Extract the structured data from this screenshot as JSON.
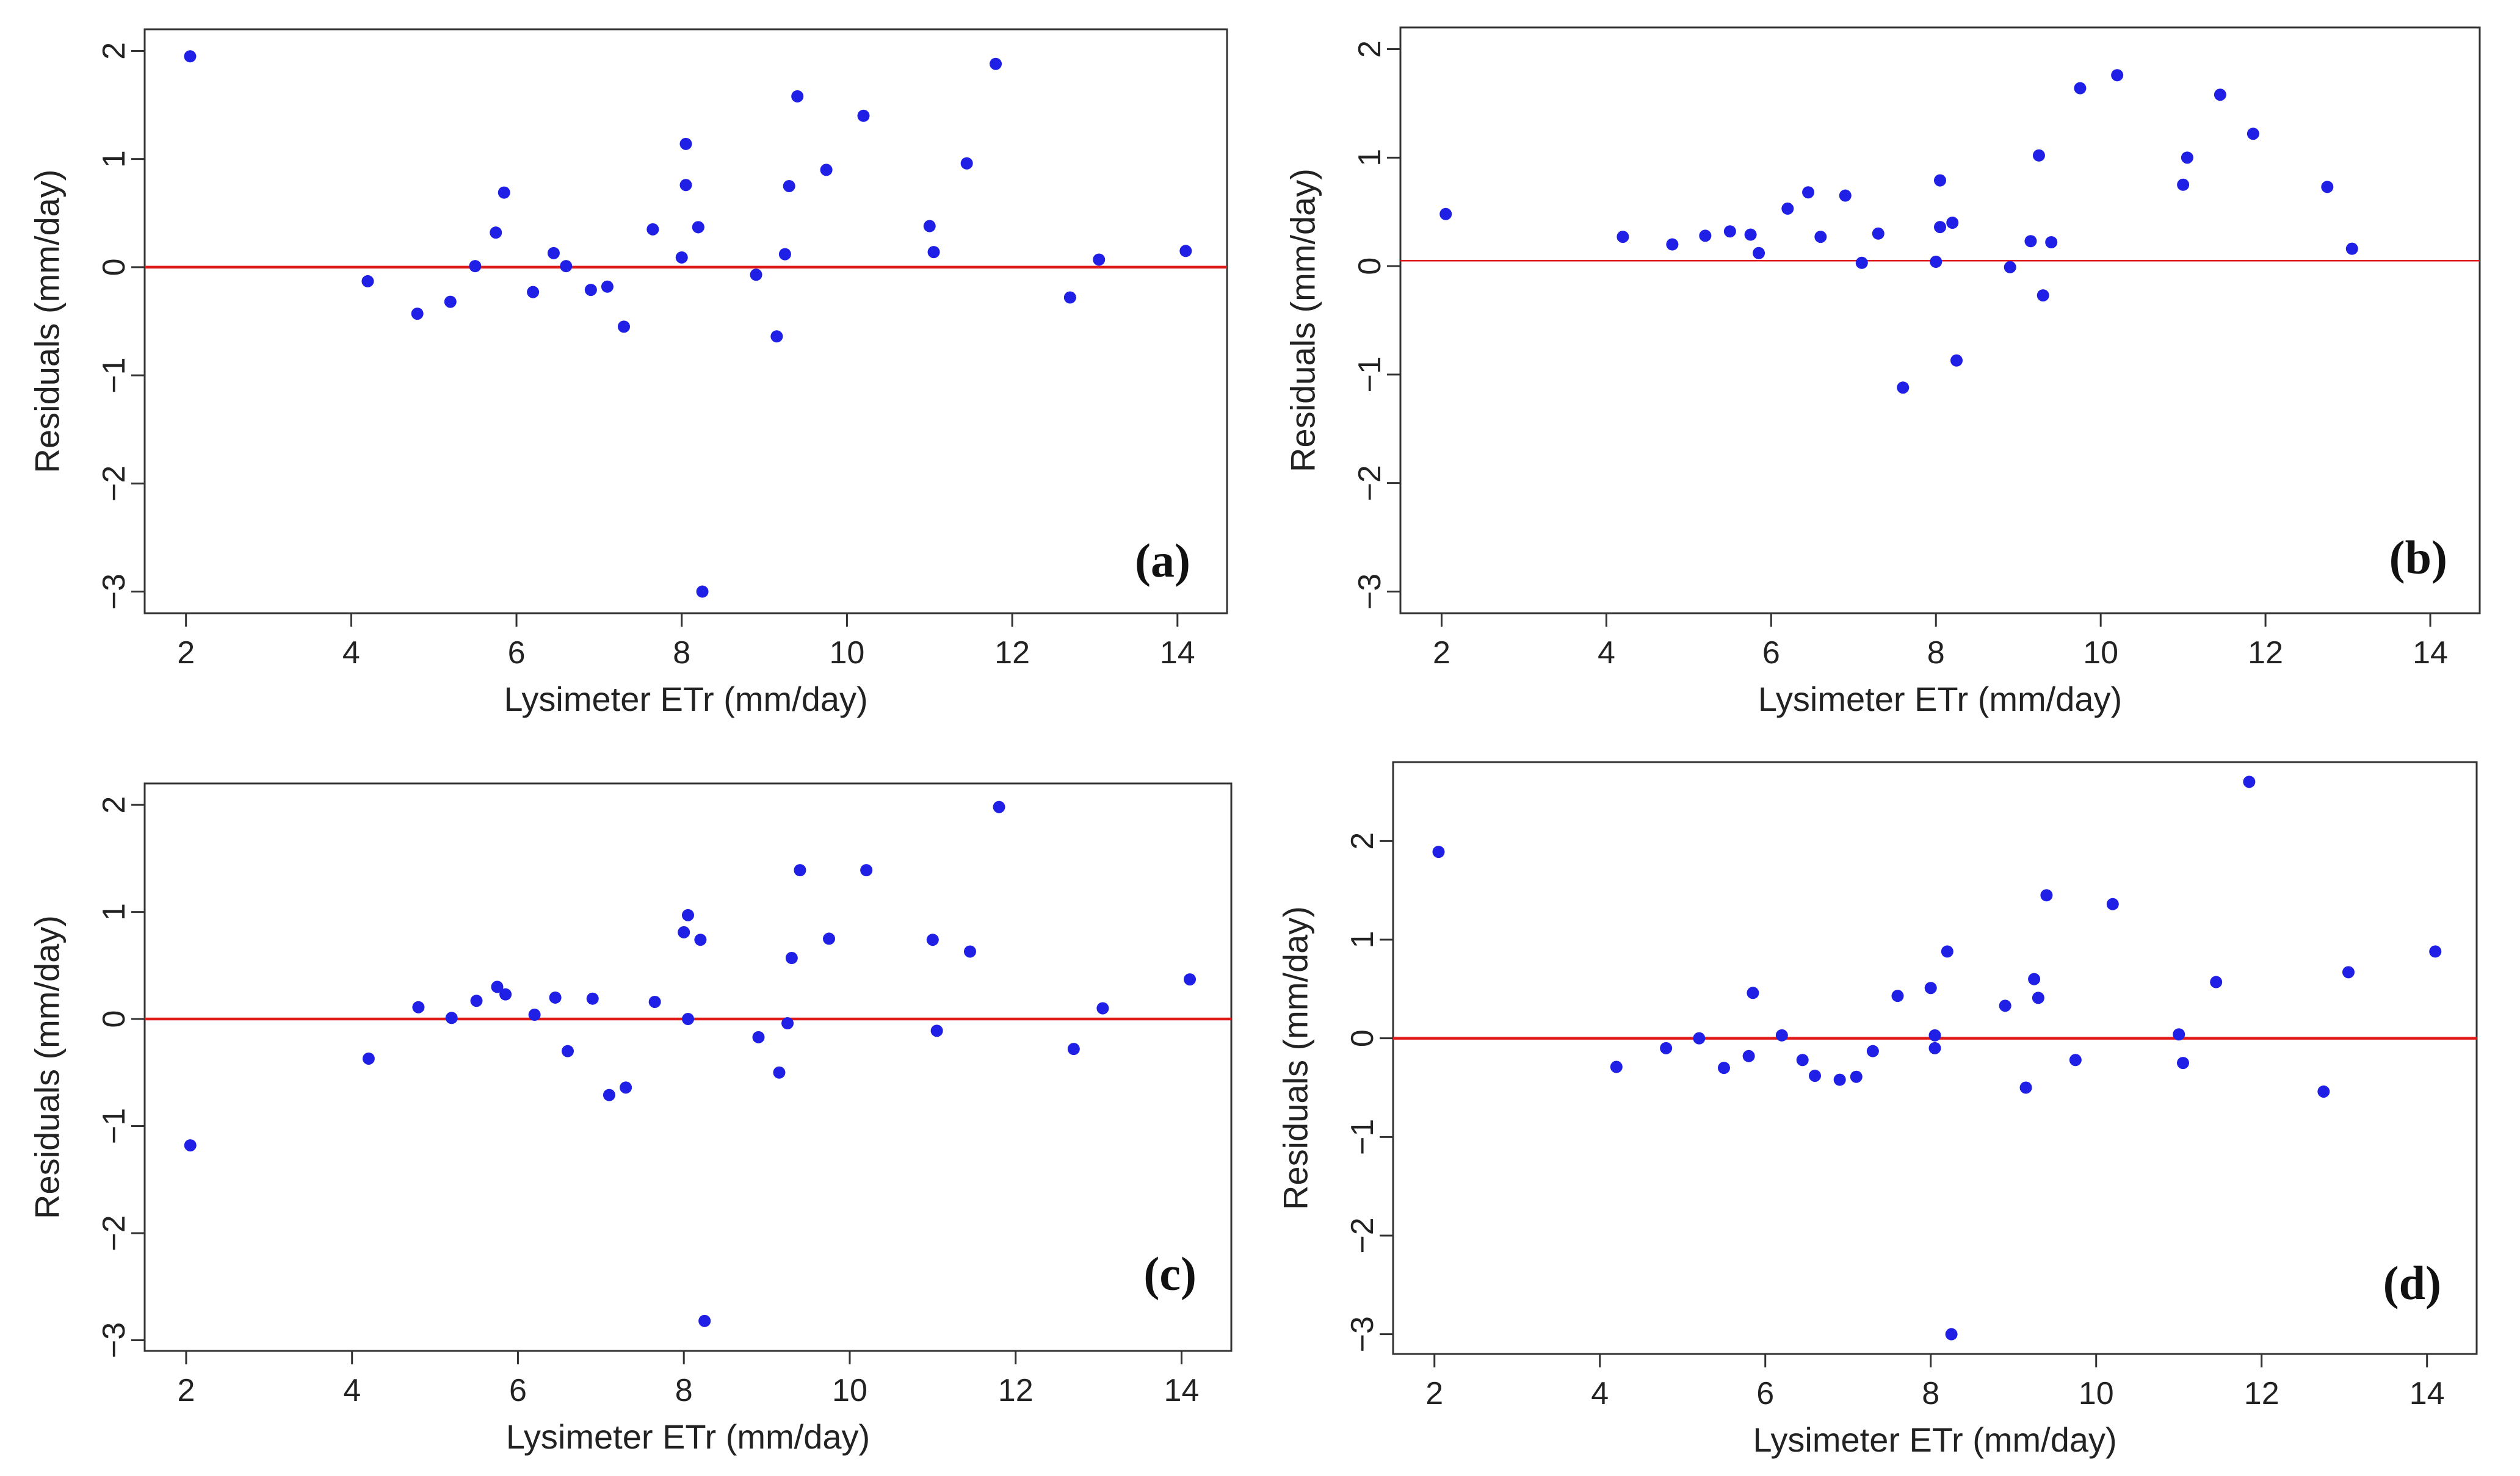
{
  "colors": {
    "points": "#1f1fe6",
    "zero_line": "#e01919",
    "frame": "#333333",
    "text": "#222222"
  },
  "chart_data": [
    {
      "panel": "(a)",
      "type": "scatter",
      "xlabel": "Lysimeter ETr (mm/day)",
      "ylabel": "Residuals (mm/day)",
      "xlim": [
        1.5,
        14.6
      ],
      "ylim": [
        -3.2,
        2.2
      ],
      "xticks": [
        2,
        4,
        6,
        8,
        10,
        12,
        14
      ],
      "yticks": [
        -3,
        -2,
        -1,
        0,
        1,
        2
      ],
      "ytick_labels": [
        "−3",
        "−2",
        "−1",
        "0",
        "1",
        "2"
      ],
      "reference_line": 0,
      "x": [
        2.05,
        4.2,
        4.8,
        5.2,
        5.5,
        5.75,
        5.85,
        6.2,
        6.45,
        6.6,
        6.9,
        7.1,
        7.3,
        7.65,
        8.0,
        8.05,
        8.05,
        8.2,
        8.25,
        8.2,
        8.9,
        9.15,
        9.25,
        9.3,
        9.4,
        9.75,
        10.2,
        11.0,
        11.05,
        11.45,
        11.8,
        12.7,
        13.05,
        14.1
      ],
      "y": [
        1.95,
        -0.13,
        -0.43,
        -0.32,
        0.01,
        0.32,
        0.69,
        -0.23,
        0.13,
        0.01,
        -0.21,
        -0.18,
        -0.55,
        0.35,
        0.09,
        0.76,
        1.14,
        0.37,
        -3.0,
        0.37,
        -0.07,
        -0.64,
        0.12,
        0.75,
        1.58,
        0.9,
        1.4,
        0.38,
        0.14,
        0.96,
        1.88,
        -0.28,
        0.07,
        0.15
      ]
    },
    {
      "panel": "(b)",
      "type": "scatter",
      "xlabel": "Lysimeter ETr (mm/day)",
      "ylabel": "Residuals (mm/day)",
      "xlim": [
        1.5,
        14.6
      ],
      "ylim": [
        -3.2,
        2.2
      ],
      "xticks": [
        2,
        4,
        6,
        8,
        10,
        12,
        14
      ],
      "yticks": [
        -3,
        -2,
        -1,
        0,
        1,
        2
      ],
      "ytick_labels": [
        "−3",
        "−2",
        "−1",
        "0",
        "1",
        "2"
      ],
      "reference_line": 0.05,
      "x": [
        2.05,
        4.2,
        4.8,
        5.2,
        5.5,
        5.75,
        5.85,
        6.2,
        6.45,
        6.6,
        6.9,
        7.1,
        7.3,
        7.6,
        8.0,
        8.05,
        8.05,
        8.2,
        8.25,
        8.9,
        9.15,
        9.25,
        9.3,
        9.4,
        9.75,
        10.2,
        11.0,
        11.05,
        11.45,
        11.85,
        12.75,
        13.05
      ],
      "y": [
        0.48,
        0.27,
        0.2,
        0.28,
        0.32,
        0.29,
        0.12,
        0.53,
        0.68,
        0.27,
        0.65,
        0.03,
        0.3,
        -1.12,
        0.04,
        0.36,
        0.79,
        0.4,
        -0.87,
        -0.01,
        0.23,
        1.02,
        -0.27,
        0.22,
        1.64,
        1.76,
        0.75,
        1.0,
        1.58,
        1.22,
        0.73,
        0.16
      ]
    },
    {
      "panel": "(c)",
      "type": "scatter",
      "xlabel": "Lysimeter ETr (mm/day)",
      "ylabel": "Residuals (mm/day)",
      "xlim": [
        1.5,
        14.6
      ],
      "ylim": [
        -3.1,
        2.2
      ],
      "xticks": [
        2,
        4,
        6,
        8,
        10,
        12,
        14
      ],
      "yticks": [
        -3,
        -2,
        -1,
        0,
        1,
        2
      ],
      "ytick_labels": [
        "−3",
        "−2",
        "−1",
        "0",
        "1",
        "2"
      ],
      "reference_line": 0,
      "x": [
        2.05,
        4.2,
        4.8,
        5.2,
        5.5,
        5.75,
        5.85,
        6.2,
        6.45,
        6.6,
        6.9,
        7.1,
        7.3,
        7.65,
        8.0,
        8.05,
        8.05,
        8.2,
        8.25,
        8.9,
        9.15,
        9.25,
        9.3,
        9.4,
        9.75,
        10.2,
        11.0,
        11.05,
        11.45,
        11.8,
        12.7,
        13.05,
        14.1
      ],
      "y": [
        -1.18,
        -0.37,
        0.11,
        0.01,
        0.17,
        0.3,
        0.23,
        0.04,
        0.2,
        -0.3,
        0.19,
        -0.71,
        -0.64,
        0.16,
        0.81,
        0.97,
        0.0,
        0.74,
        -2.82,
        -0.17,
        -0.5,
        -0.04,
        0.57,
        1.39,
        0.75,
        1.39,
        0.74,
        -0.11,
        0.63,
        1.98,
        -0.28,
        0.1,
        0.37
      ]
    },
    {
      "panel": "(d)",
      "type": "scatter",
      "xlabel": "Lysimeter ETr (mm/day)",
      "ylabel": "Residuals (mm/day)",
      "xlim": [
        1.5,
        14.6
      ],
      "ylim": [
        -3.2,
        2.8
      ],
      "xticks": [
        2,
        4,
        6,
        8,
        10,
        12,
        14
      ],
      "yticks": [
        -3,
        -2,
        -1,
        0,
        1,
        2
      ],
      "ytick_labels": [
        "−3",
        "−2",
        "−1",
        "0",
        "1",
        "2"
      ],
      "reference_line": 0,
      "x": [
        2.05,
        4.2,
        4.8,
        5.2,
        5.5,
        5.8,
        5.85,
        6.2,
        6.45,
        6.6,
        6.9,
        7.1,
        7.3,
        7.6,
        8.0,
        8.05,
        8.05,
        8.2,
        8.25,
        8.9,
        9.15,
        9.25,
        9.3,
        9.4,
        9.75,
        10.2,
        11.0,
        11.05,
        11.45,
        11.85,
        12.75,
        13.05,
        14.1
      ],
      "y": [
        1.89,
        -0.29,
        -0.1,
        0.0,
        -0.3,
        -0.18,
        0.46,
        0.03,
        -0.22,
        -0.38,
        -0.42,
        -0.39,
        -0.13,
        0.43,
        0.51,
        0.03,
        -0.1,
        0.88,
        -3.0,
        0.33,
        -0.5,
        0.6,
        0.41,
        1.45,
        -0.22,
        1.36,
        0.04,
        -0.25,
        0.57,
        2.6,
        -0.54,
        0.67,
        0.88
      ]
    }
  ]
}
